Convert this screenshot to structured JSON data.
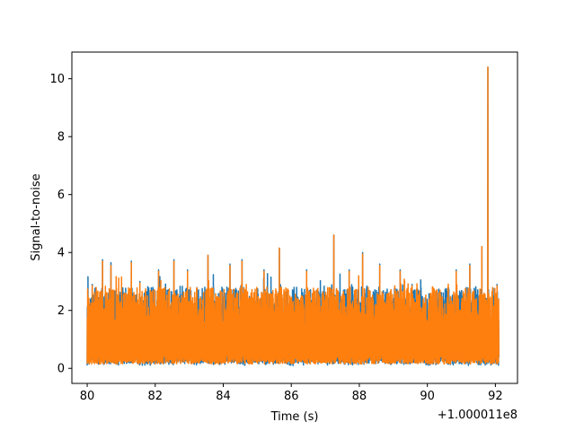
{
  "chart_data": {
    "type": "line",
    "title": "",
    "xlabel": "Time (s)",
    "ylabel": "Signal-to-noise",
    "x_offset_label": "+1.000011e8",
    "xlim": [
      79.55,
      92.65
    ],
    "ylim": [
      -0.52,
      10.92
    ],
    "x_ticks": [
      80,
      82,
      84,
      86,
      88,
      90,
      92
    ],
    "x_tick_labels": [
      "80",
      "82",
      "84",
      "86",
      "88",
      "90",
      "92"
    ],
    "y_ticks": [
      0,
      2,
      4,
      6,
      8,
      10
    ],
    "y_tick_labels": [
      "0",
      "2",
      "4",
      "6",
      "8",
      "10"
    ],
    "grid": false,
    "legend": "none",
    "noise_floor": 0.15,
    "series": [
      {
        "color": "#1f77b4",
        "x_range": [
          80.0,
          92.1
        ],
        "peaks": [
          {
            "x": 80.15,
            "y": 2.9
          },
          {
            "x": 80.45,
            "y": 3.75
          },
          {
            "x": 80.7,
            "y": 3.65
          },
          {
            "x": 81.3,
            "y": 3.7
          },
          {
            "x": 81.55,
            "y": 3.0
          },
          {
            "x": 82.1,
            "y": 3.4
          },
          {
            "x": 82.55,
            "y": 3.75
          },
          {
            "x": 82.95,
            "y": 3.4
          },
          {
            "x": 83.55,
            "y": 3.9
          },
          {
            "x": 84.2,
            "y": 3.6
          },
          {
            "x": 84.55,
            "y": 3.75
          },
          {
            "x": 85.2,
            "y": 3.4
          },
          {
            "x": 85.65,
            "y": 4.15
          },
          {
            "x": 86.45,
            "y": 3.4
          },
          {
            "x": 87.25,
            "y": 4.6
          },
          {
            "x": 87.7,
            "y": 3.4
          },
          {
            "x": 88.1,
            "y": 4.0
          },
          {
            "x": 88.6,
            "y": 3.6
          },
          {
            "x": 89.2,
            "y": 3.4
          },
          {
            "x": 89.55,
            "y": 2.9
          },
          {
            "x": 90.85,
            "y": 3.4
          },
          {
            "x": 91.25,
            "y": 3.6
          },
          {
            "x": 91.6,
            "y": 4.2
          },
          {
            "x": 91.78,
            "y": 10.4
          },
          {
            "x": 92.05,
            "y": 2.9
          }
        ]
      },
      {
        "color": "#ff7f0e",
        "x_range": [
          80.0,
          92.1
        ],
        "peaks": [
          {
            "x": 80.15,
            "y": 2.85
          },
          {
            "x": 80.45,
            "y": 3.7
          },
          {
            "x": 80.7,
            "y": 3.55
          },
          {
            "x": 81.3,
            "y": 3.65
          },
          {
            "x": 81.55,
            "y": 2.95
          },
          {
            "x": 82.1,
            "y": 3.35
          },
          {
            "x": 82.55,
            "y": 3.7
          },
          {
            "x": 82.95,
            "y": 3.35
          },
          {
            "x": 83.55,
            "y": 3.9
          },
          {
            "x": 84.2,
            "y": 3.55
          },
          {
            "x": 84.55,
            "y": 3.7
          },
          {
            "x": 85.2,
            "y": 3.35
          },
          {
            "x": 85.65,
            "y": 4.15
          },
          {
            "x": 86.45,
            "y": 3.35
          },
          {
            "x": 87.25,
            "y": 4.6
          },
          {
            "x": 87.7,
            "y": 3.35
          },
          {
            "x": 88.1,
            "y": 3.95
          },
          {
            "x": 88.6,
            "y": 3.55
          },
          {
            "x": 89.2,
            "y": 3.35
          },
          {
            "x": 89.55,
            "y": 2.85
          },
          {
            "x": 90.85,
            "y": 3.35
          },
          {
            "x": 91.25,
            "y": 3.55
          },
          {
            "x": 91.6,
            "y": 4.2
          },
          {
            "x": 91.78,
            "y": 10.4
          },
          {
            "x": 92.05,
            "y": 2.85
          }
        ]
      }
    ]
  }
}
